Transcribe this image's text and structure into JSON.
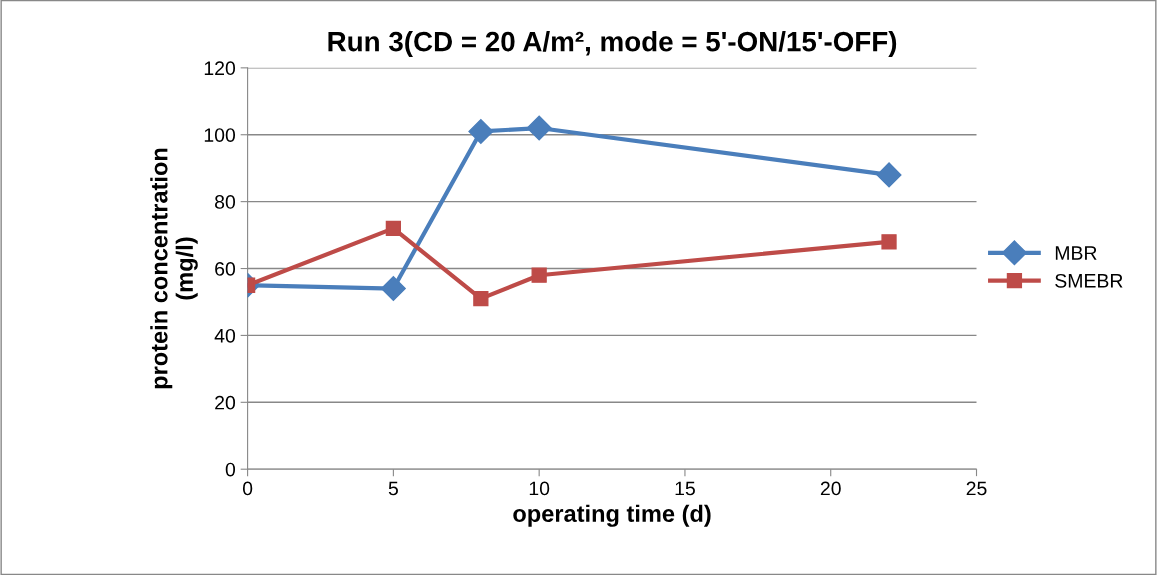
{
  "chart_data": {
    "type": "line",
    "title": "Run 3(CD = 20 A/m², mode = 5'-ON/15'-OFF)",
    "xlabel": "operating time (d)",
    "ylabel": "protein concentration\n(mg/l)",
    "x": [
      0,
      5,
      8,
      10,
      22
    ],
    "series": [
      {
        "name": "MBR",
        "color": "#4a7ebb",
        "marker": "diamond",
        "values": [
          55,
          54,
          101,
          102,
          88
        ]
      },
      {
        "name": "SMEBR",
        "color": "#be4b48",
        "marker": "square",
        "values": [
          55,
          72,
          51,
          58,
          68
        ]
      }
    ],
    "xlim": [
      0,
      25
    ],
    "xticks": [
      0,
      5,
      10,
      15,
      20,
      25
    ],
    "ylim": [
      0,
      120
    ],
    "yticks": [
      0,
      20,
      40,
      60,
      80,
      100,
      120
    ],
    "grid": "y",
    "legend": "right",
    "line_style": "solid"
  }
}
